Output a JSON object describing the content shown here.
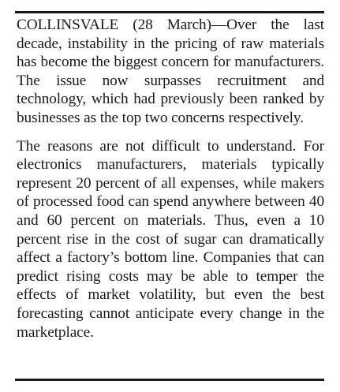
{
  "article": {
    "paragraphs": [
      "COLLINSVALE (28 March)—Over the last decade, instability in the pricing of raw materials has become the biggest concern for manufacturers. The issue now surpasses recruitment and technology, which had previously been ranked by businesses as the top two concerns respectively.",
      "The reasons are not difficult to understand. For electronics manufacturers, materials typically represent 20 percent of all expenses, while makers of processed food can spend anywhere between 40 and 60 percent on materials. Thus, even a 10 percent rise in the cost of sugar can dramatically affect a factory’s bottom line. Companies that can predict rising costs may be able to temper the effects of market volatility, but even the best forecasting cannot anticipate every change in the marketplace."
    ]
  }
}
